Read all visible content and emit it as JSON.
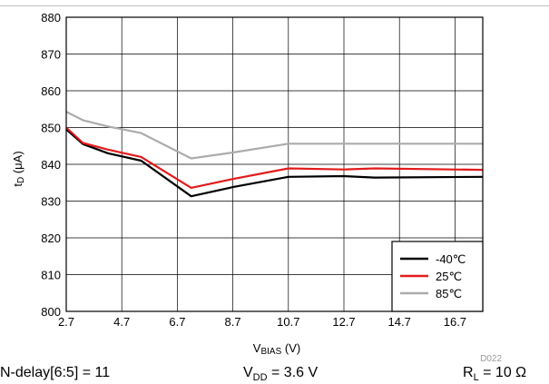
{
  "chart_data": {
    "type": "line",
    "xlabel": {
      "main": "V",
      "sub": "BIAS",
      "unit": " (V)"
    },
    "ylabel": {
      "main": "t",
      "sub": "D",
      "unit": " (μA)"
    },
    "xlim": [
      2.7,
      17.7
    ],
    "ylim": [
      800,
      880
    ],
    "x_ticks": [
      "2.7",
      "4.7",
      "6.7",
      "8.7",
      "10.7",
      "12.7",
      "14.7",
      "16.7"
    ],
    "y_ticks": [
      "800",
      "810",
      "820",
      "830",
      "840",
      "850",
      "860",
      "870",
      "880"
    ],
    "grid": true,
    "legend_position": "bottom-right",
    "series": [
      {
        "name": "-40℃",
        "color": "#000000",
        "x": [
          2.7,
          3.3,
          4.2,
          5.4,
          7.2,
          8.7,
          10.7,
          12.7,
          13.8,
          17.7
        ],
        "y": [
          849.5,
          845.5,
          843,
          841,
          831.3,
          833.8,
          836.6,
          836.8,
          836.4,
          836.6
        ]
      },
      {
        "name": "25℃",
        "color": "#e21b1b",
        "x": [
          2.7,
          3.3,
          4.2,
          5.4,
          7.2,
          8.7,
          10.7,
          12.7,
          13.8,
          17.7
        ],
        "y": [
          850,
          845.8,
          844,
          842,
          833.6,
          836,
          838.9,
          838.6,
          838.9,
          838.5
        ]
      },
      {
        "name": "85℃",
        "color": "#acacac",
        "x": [
          2.7,
          3.3,
          4.2,
          5.4,
          7.2,
          8.7,
          10.7,
          12.7,
          13.8,
          17.7
        ],
        "y": [
          854.3,
          852,
          850.3,
          848.5,
          841.6,
          843.2,
          845.6,
          845.6,
          845.6,
          845.6
        ]
      }
    ],
    "code_label": "D022"
  },
  "footer": {
    "left": "N-delay[6:5] = 11",
    "middle_main": "V",
    "middle_sub": "DD",
    "middle_value": " = 3.6 V",
    "right_main": "R",
    "right_sub": "L",
    "right_value": " = 10 Ω"
  }
}
